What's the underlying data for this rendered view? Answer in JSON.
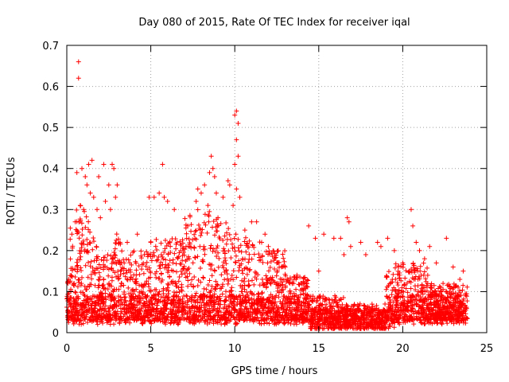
{
  "chart_data": {
    "type": "scatter",
    "title": "Day 080 of 2015, Rate Of TEC Index for receiver iqal",
    "xlabel": "GPS time / hours",
    "ylabel": "ROTI / TECUs",
    "xlim": [
      0,
      25
    ],
    "ylim": [
      0,
      0.7
    ],
    "x_ticks": [
      0,
      5,
      10,
      15,
      20,
      25
    ],
    "y_ticks": [
      0,
      0.1,
      0.2,
      0.3,
      0.4,
      0.5,
      0.6,
      0.7
    ],
    "grid": true,
    "marker": "plus",
    "colors": {
      "points": "#ff0000",
      "grid": "#a0a0a0",
      "axes": "#000000"
    },
    "series": [
      {
        "name": "ROTI",
        "points": [
          [
            0.7,
            0.66
          ],
          [
            0.7,
            0.62
          ],
          [
            10.1,
            0.54
          ],
          [
            10.0,
            0.53
          ],
          [
            10.2,
            0.51
          ],
          [
            10.1,
            0.47
          ],
          [
            10.2,
            0.43
          ],
          [
            10.0,
            0.41
          ],
          [
            9.9,
            0.31
          ],
          [
            10.1,
            0.35
          ],
          [
            10.3,
            0.33
          ],
          [
            0.6,
            0.39
          ],
          [
            0.9,
            0.4
          ],
          [
            1.1,
            0.38
          ],
          [
            1.2,
            0.36
          ],
          [
            1.3,
            0.41
          ],
          [
            1.5,
            0.42
          ],
          [
            1.6,
            0.33
          ],
          [
            1.8,
            0.3
          ],
          [
            1.9,
            0.38
          ],
          [
            2.2,
            0.41
          ],
          [
            2.5,
            0.36
          ],
          [
            2.7,
            0.41
          ],
          [
            2.8,
            0.4
          ],
          [
            2.9,
            0.33
          ],
          [
            3.0,
            0.36
          ],
          [
            1.0,
            0.3
          ],
          [
            1.4,
            0.34
          ],
          [
            2.0,
            0.28
          ],
          [
            2.3,
            0.32
          ],
          [
            2.6,
            0.3
          ],
          [
            0.3,
            0.24
          ],
          [
            0.5,
            0.27
          ],
          [
            0.8,
            0.31
          ],
          [
            5.7,
            0.41
          ],
          [
            5.5,
            0.34
          ],
          [
            5.8,
            0.33
          ],
          [
            6.0,
            0.32
          ],
          [
            5.2,
            0.33
          ],
          [
            5.0,
            0.22
          ],
          [
            6.4,
            0.3
          ],
          [
            7.2,
            0.26
          ],
          [
            7.7,
            0.32
          ],
          [
            7.8,
            0.35
          ],
          [
            8.0,
            0.34
          ],
          [
            8.2,
            0.36
          ],
          [
            8.5,
            0.39
          ],
          [
            8.6,
            0.43
          ],
          [
            8.7,
            0.4
          ],
          [
            8.8,
            0.38
          ],
          [
            8.9,
            0.34
          ],
          [
            8.4,
            0.31
          ],
          [
            9.0,
            0.28
          ],
          [
            9.3,
            0.33
          ],
          [
            9.6,
            0.37
          ],
          [
            9.7,
            0.36
          ],
          [
            4.9,
            0.33
          ],
          [
            4.2,
            0.24
          ],
          [
            3.6,
            0.22
          ],
          [
            11.0,
            0.27
          ],
          [
            11.3,
            0.27
          ],
          [
            11.8,
            0.24
          ],
          [
            11.6,
            0.22
          ],
          [
            12.0,
            0.21
          ],
          [
            10.6,
            0.25
          ],
          [
            12.5,
            0.17
          ],
          [
            13.0,
            0.16
          ],
          [
            13.3,
            0.13
          ],
          [
            13.7,
            0.14
          ],
          [
            14.4,
            0.26
          ],
          [
            14.8,
            0.23
          ],
          [
            15.3,
            0.24
          ],
          [
            15.9,
            0.23
          ],
          [
            16.3,
            0.23
          ],
          [
            16.7,
            0.28
          ],
          [
            16.8,
            0.27
          ],
          [
            16.5,
            0.19
          ],
          [
            16.9,
            0.21
          ],
          [
            17.5,
            0.22
          ],
          [
            17.8,
            0.19
          ],
          [
            18.5,
            0.22
          ],
          [
            18.7,
            0.21
          ],
          [
            19.1,
            0.23
          ],
          [
            19.5,
            0.2
          ],
          [
            20.5,
            0.3
          ],
          [
            20.6,
            0.26
          ],
          [
            20.8,
            0.22
          ],
          [
            21.0,
            0.2
          ],
          [
            21.3,
            0.18
          ],
          [
            21.6,
            0.21
          ],
          [
            22.0,
            0.17
          ],
          [
            22.6,
            0.23
          ],
          [
            23.0,
            0.16
          ],
          [
            23.6,
            0.15
          ],
          [
            20.0,
            0.17
          ],
          [
            19.8,
            0.14
          ],
          [
            15.0,
            0.15
          ],
          [
            14.0,
            0.12
          ],
          [
            13.5,
            0.12
          ],
          [
            12.8,
            0.13
          ],
          [
            22.4,
            0.12
          ],
          [
            23.4,
            0.13
          ]
        ]
      }
    ]
  }
}
